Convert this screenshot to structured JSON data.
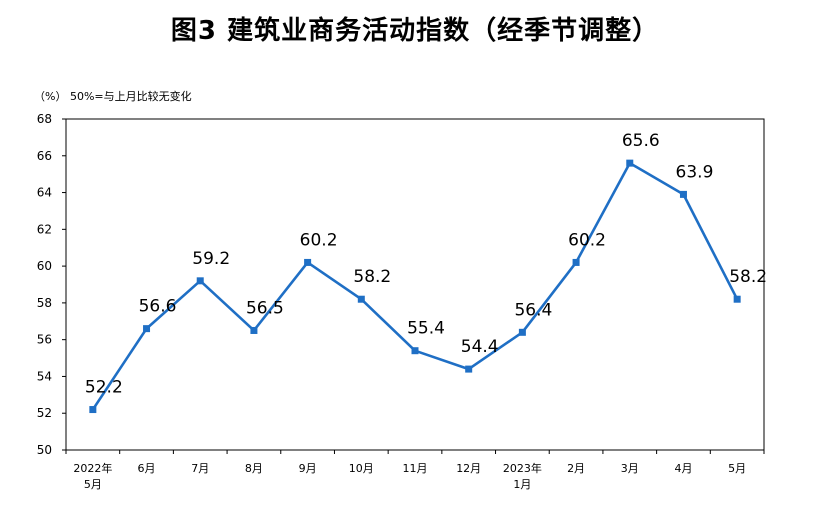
{
  "chart_data": {
    "type": "line",
    "title": "图3  建筑业商务活动指数（经季节调整）",
    "unit_note": "（%）  50%=与上月比较无变化",
    "categories": [
      [
        "2022年",
        "5月"
      ],
      [
        "6月"
      ],
      [
        "7月"
      ],
      [
        "8月"
      ],
      [
        "9月"
      ],
      [
        "10月"
      ],
      [
        "11月"
      ],
      [
        "12月"
      ],
      [
        "2023年",
        "1月"
      ],
      [
        "2月"
      ],
      [
        "3月"
      ],
      [
        "4月"
      ],
      [
        "5月"
      ]
    ],
    "series": [
      {
        "values": [
          52.2,
          56.6,
          59.2,
          56.5,
          60.2,
          58.2,
          55.4,
          54.4,
          56.4,
          60.2,
          65.6,
          63.9,
          58.2
        ],
        "color": "#1f6fc5"
      }
    ],
    "yticks": [
      50,
      52,
      54,
      56,
      58,
      60,
      62,
      64,
      66,
      68
    ],
    "ylim": [
      50,
      68
    ],
    "xlabel": "",
    "ylabel": "",
    "grid": false,
    "legend": "none"
  }
}
